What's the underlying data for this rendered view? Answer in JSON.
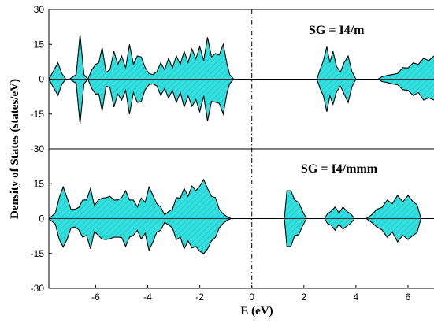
{
  "chart_data": {
    "type": "area",
    "xlabel": "E (eV)",
    "ylabel": "Density of States (states/eV)",
    "xlim": [
      -7.8,
      7.0
    ],
    "x_ticks": [
      "-6",
      "-4",
      "-2",
      "0",
      "2",
      "4",
      "6"
    ],
    "fermi_level": 0,
    "fill_color": "#33e0e0",
    "hatch": true,
    "panels": [
      {
        "label": "SG = I4/m",
        "ylim": [
          -30,
          30
        ],
        "y_ticks": [
          "30",
          "15",
          "0",
          "-15",
          "-30"
        ],
        "series": [
          {
            "x": [
              -7.8,
              -7.6,
              -7.45,
              -7.3,
              -7.15,
              -7.0,
              -6.75,
              -6.6,
              -6.45,
              -6.3,
              -6.15,
              -6.0,
              -5.88,
              -5.75,
              -5.6,
              -5.45,
              -5.3,
              -5.15,
              -5.0,
              -4.85,
              -4.7,
              -4.55,
              -4.4,
              -4.25,
              -4.1,
              -3.95,
              -3.8,
              -3.65,
              -3.5,
              -3.35,
              -3.2,
              -3.05,
              -2.9,
              -2.75,
              -2.6,
              -2.45,
              -2.3,
              -2.15,
              -2.0,
              -1.85,
              -1.7,
              -1.55,
              -1.4,
              -1.25,
              -1.1,
              -0.95,
              -0.85,
              -0.7,
              0.0,
              2.5,
              2.62,
              2.75,
              2.88,
              3.0,
              3.12,
              3.25,
              3.4,
              3.55,
              3.7,
              3.85,
              4.0,
              4.85,
              5.0,
              5.2,
              5.4,
              5.6,
              5.8,
              6.0,
              6.2,
              6.4,
              6.6,
              6.8,
              7.0
            ],
            "y": [
              0,
              5,
              7,
              3,
              0,
              0,
              2,
              24,
              2,
              0,
              4,
              8,
              7,
              17,
              3,
              5,
              12,
              8,
              10,
              6,
              15,
              8,
              10,
              12,
              5,
              3,
              2,
              4,
              7,
              5,
              9,
              6,
              10,
              8,
              12,
              9,
              13,
              11,
              14,
              10,
              18,
              12,
              11,
              13,
              15,
              8,
              2,
              0,
              0,
              0,
              4,
              10,
              14,
              9,
              12,
              7,
              3,
              9,
              10,
              4,
              0,
              0,
              1,
              2,
              2,
              3,
              5,
              6,
              7,
              8,
              9,
              10,
              10
            ]
          }
        ]
      },
      {
        "label": "SG = I4/mmm",
        "ylim": [
          -30,
          30
        ],
        "y_ticks": [
          "30",
          "15",
          "0",
          "-15",
          "-30"
        ],
        "series": [
          {
            "x": [
              -7.8,
              -7.55,
              -7.4,
              -7.25,
              -7.1,
              -6.95,
              -6.8,
              -6.65,
              -6.5,
              -6.35,
              -6.2,
              -6.05,
              -5.9,
              -5.75,
              -5.6,
              -5.45,
              -5.3,
              -5.15,
              -5.0,
              -4.85,
              -4.7,
              -4.55,
              -4.4,
              -4.25,
              -4.1,
              -3.95,
              -3.8,
              -3.65,
              -3.5,
              -3.35,
              -3.2,
              -3.05,
              -2.9,
              -2.75,
              -2.6,
              -2.45,
              -2.3,
              -2.15,
              -2.0,
              -1.85,
              -1.7,
              -1.55,
              -1.4,
              -1.25,
              -1.1,
              -0.95,
              -0.8,
              0.0,
              1.25,
              1.35,
              1.5,
              1.65,
              1.8,
              1.95,
              2.1,
              2.8,
              2.9,
              3.05,
              3.2,
              3.35,
              3.5,
              3.65,
              3.8,
              3.95,
              4.4,
              4.6,
              4.8,
              5.0,
              5.2,
              5.4,
              5.6,
              5.8,
              6.0,
              6.2,
              6.35,
              6.5,
              7.0
            ],
            "y": [
              0,
              3,
              9,
              17,
              9,
              5,
              4,
              6,
              8,
              10,
              13,
              7,
              8,
              11,
              9,
              12,
              8,
              10,
              9,
              15,
              8,
              10,
              5,
              11,
              7,
              17,
              10,
              8,
              5,
              2,
              3,
              5,
              9,
              11,
              13,
              12,
              14,
              15,
              14,
              21,
              13,
              12,
              9,
              5,
              2,
              1,
              0,
              0,
              0,
              15,
              12,
              10,
              7,
              4,
              0,
              0,
              2,
              4,
              5,
              3,
              5,
              4,
              2,
              0,
              0,
              2,
              4,
              6,
              8,
              8,
              10,
              9,
              10,
              9,
              6,
              0,
              0
            ]
          }
        ]
      }
    ]
  }
}
